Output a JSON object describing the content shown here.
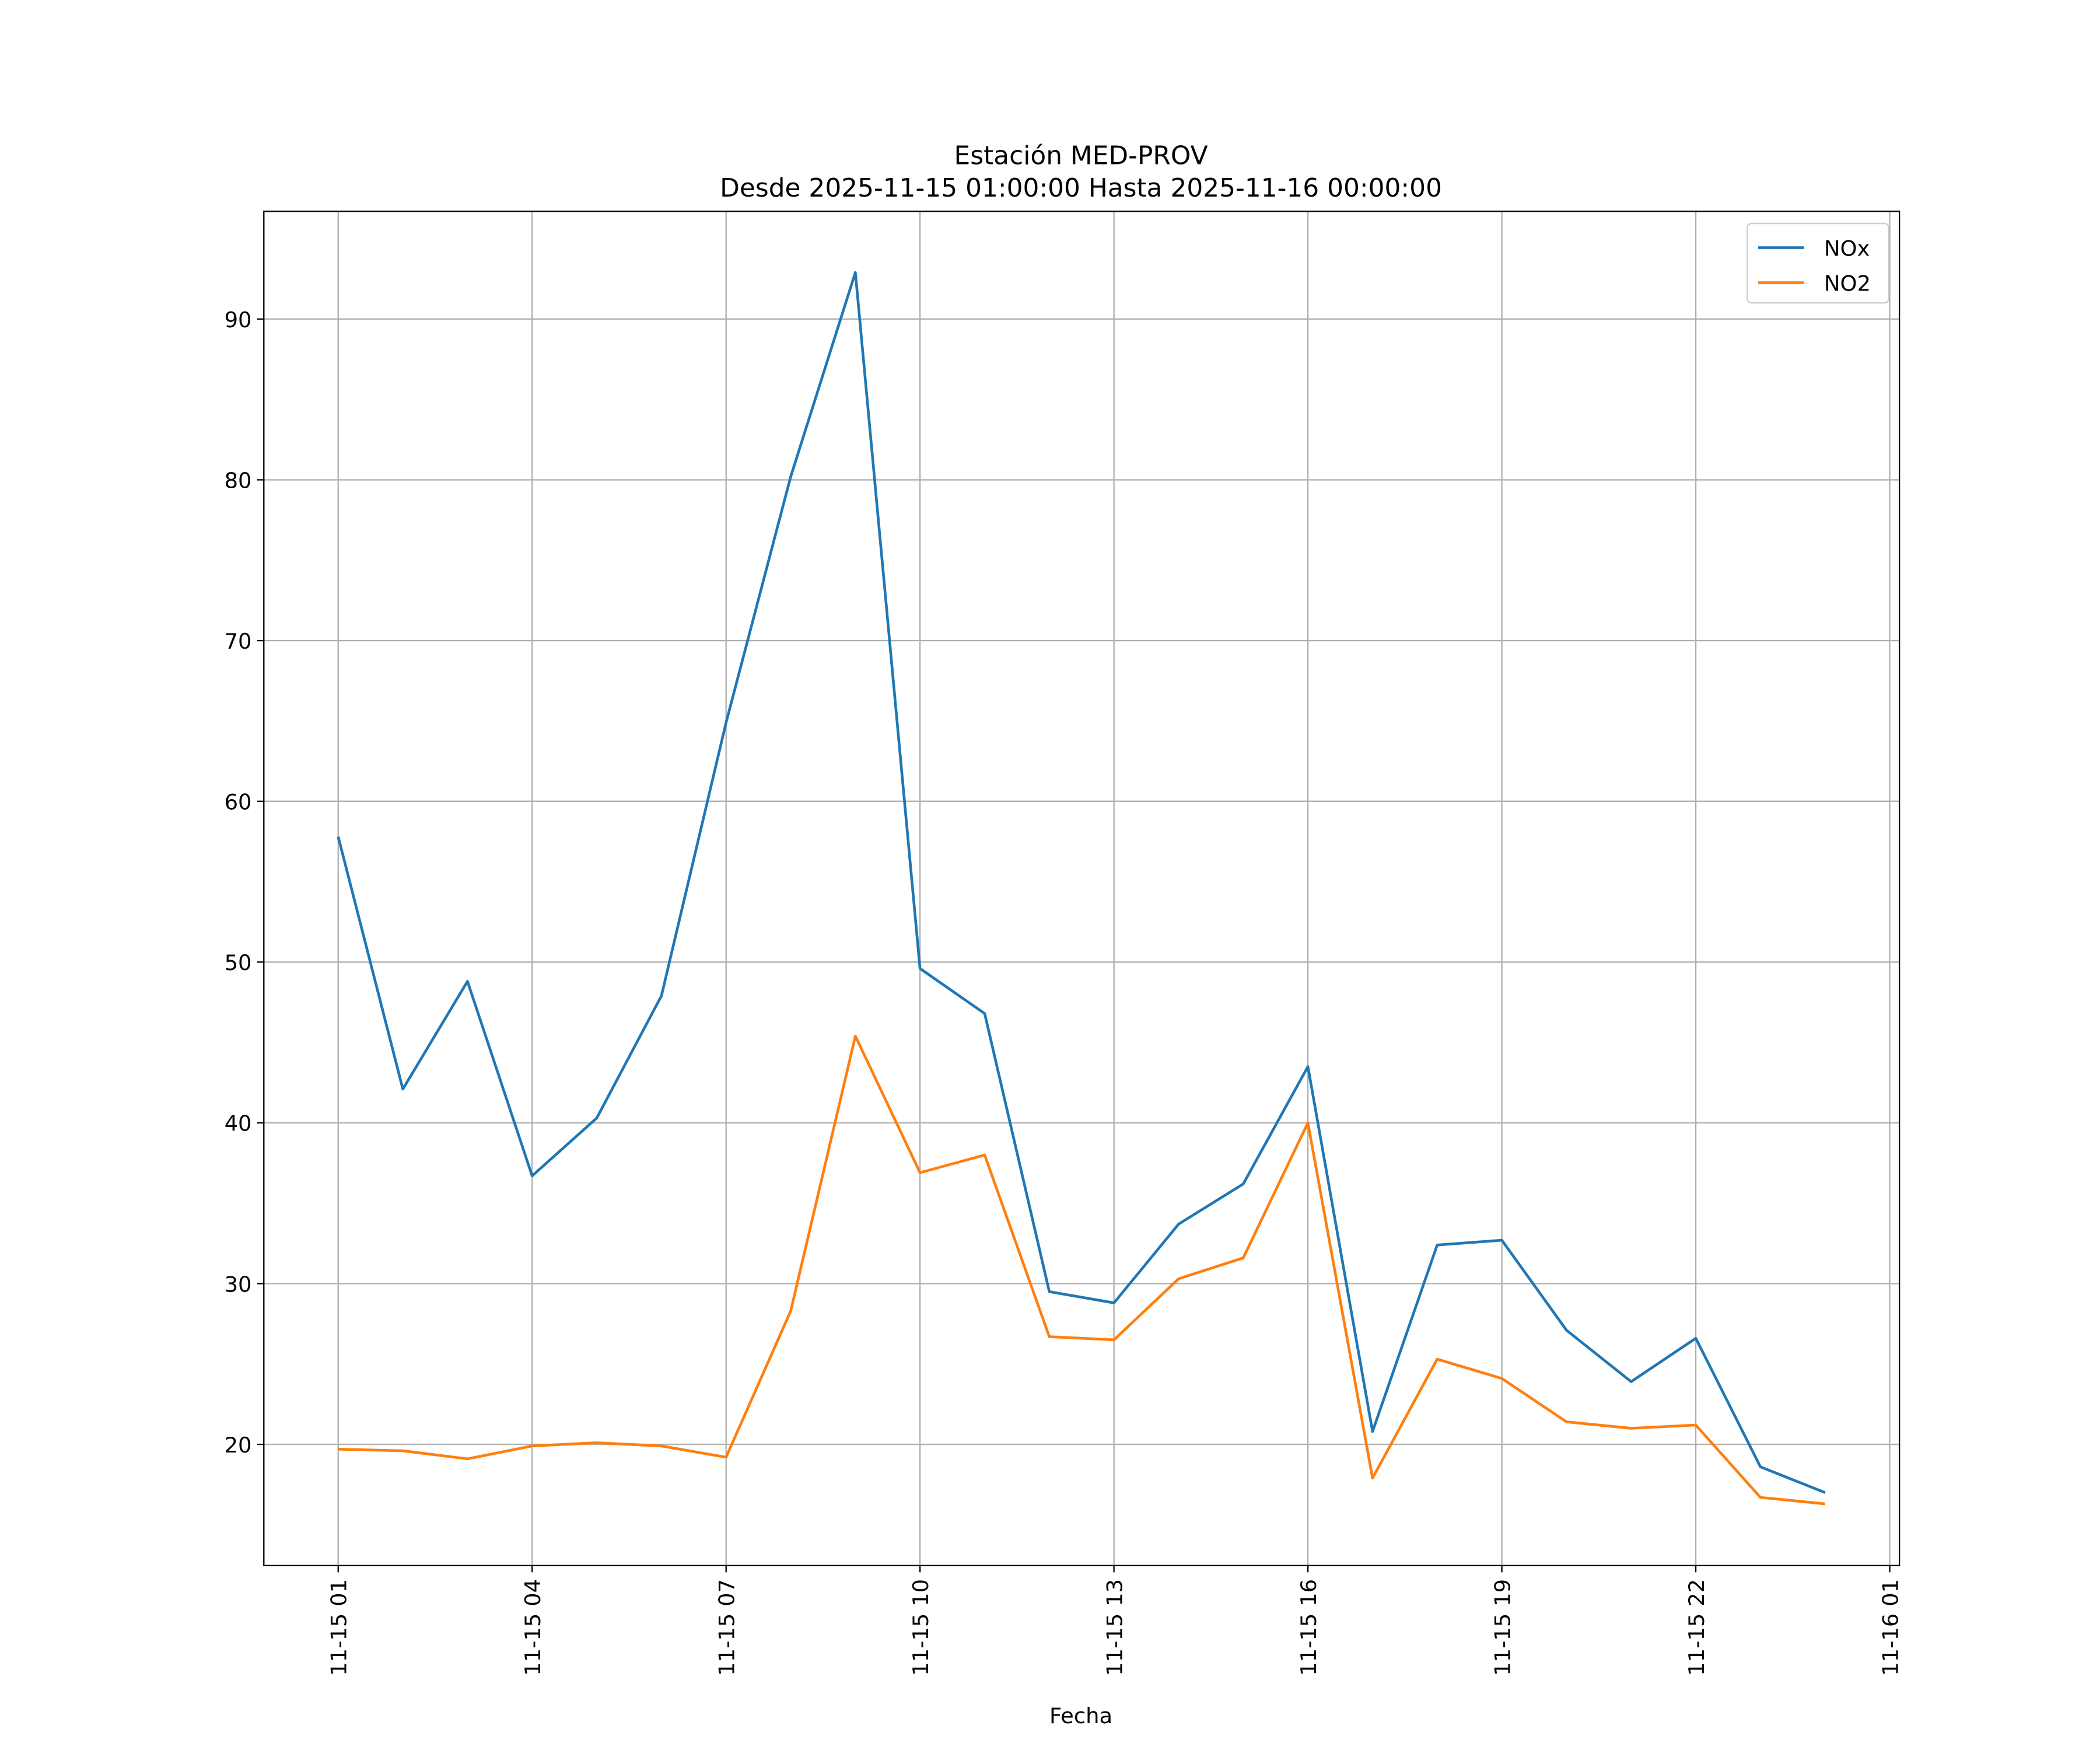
{
  "chart_data": {
    "type": "line",
    "title": "Estación MED-PROV",
    "subtitle": "Desde 2025-11-15 01:00:00 Hasta 2025-11-16 00:00:00",
    "xlabel": "Fecha",
    "ylabel": "",
    "x_hours": [
      1,
      2,
      3,
      4,
      5,
      6,
      7,
      8,
      9,
      10,
      11,
      12,
      13,
      14,
      15,
      16,
      17,
      18,
      19,
      20,
      21,
      22,
      23,
      24
    ],
    "x_ticks": [
      {
        "hour": 1,
        "label": "11-15 01"
      },
      {
        "hour": 4,
        "label": "11-15 04"
      },
      {
        "hour": 7,
        "label": "11-15 07"
      },
      {
        "hour": 10,
        "label": "11-15 10"
      },
      {
        "hour": 13,
        "label": "11-15 13"
      },
      {
        "hour": 16,
        "label": "11-15 16"
      },
      {
        "hour": 19,
        "label": "11-15 19"
      },
      {
        "hour": 22,
        "label": "11-15 22"
      },
      {
        "hour": 25,
        "label": "11-16 01"
      }
    ],
    "y_ticks": [
      20,
      30,
      40,
      50,
      60,
      70,
      80,
      90
    ],
    "xlim_hours": [
      -0.15,
      25.15
    ],
    "ylim": [
      12.46,
      96.7
    ],
    "grid": true,
    "legend_position": "top-right",
    "series": [
      {
        "name": "NOx",
        "color": "#1f77b4",
        "values": [
          57.8,
          42.1,
          48.8,
          36.7,
          40.3,
          47.9,
          64.9,
          80.2,
          92.9,
          49.6,
          46.8,
          29.5,
          28.8,
          33.7,
          36.2,
          43.5,
          20.8,
          32.4,
          32.7,
          27.1,
          23.9,
          26.6,
          18.6,
          17.0
        ]
      },
      {
        "name": "NO2",
        "color": "#ff7f0e",
        "values": [
          19.7,
          19.6,
          19.1,
          19.9,
          20.1,
          19.9,
          19.2,
          28.3,
          45.4,
          36.9,
          38.0,
          26.7,
          26.5,
          30.3,
          31.6,
          40.0,
          17.9,
          25.3,
          24.1,
          21.4,
          21.0,
          21.2,
          16.7,
          16.3
        ]
      }
    ]
  }
}
